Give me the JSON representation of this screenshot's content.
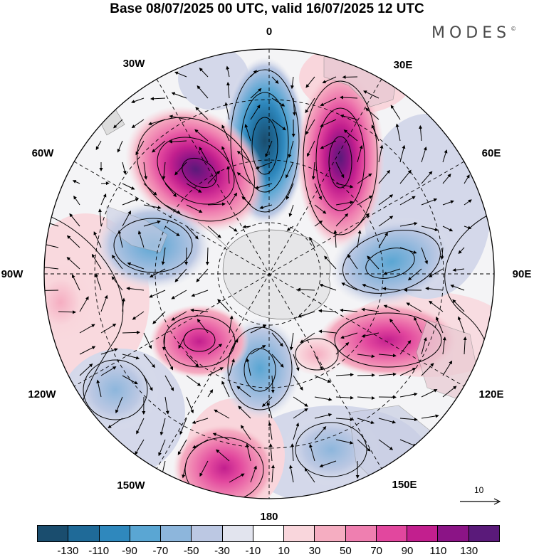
{
  "title": "Base 08/07/2025 00 UTC, valid 16/07/2025 12 UTC",
  "brand": {
    "text": "MODES",
    "mark": "©"
  },
  "longitude_labels": {
    "l0": "0",
    "l30e": "30E",
    "l60e": "60E",
    "l90e": "90E",
    "l120e": "120E",
    "l150e": "150E",
    "l180": "180",
    "l150w": "150W",
    "l120w": "120W",
    "l90w": "90W",
    "l60w": "60W",
    "l30w": "30W"
  },
  "reference_vector": {
    "label": "10"
  },
  "colorbar": {
    "colors": [
      "#1a4d6e",
      "#1f6a98",
      "#2f88bd",
      "#5aa6d3",
      "#8db6dc",
      "#bcc8e3",
      "#e2e4ee",
      "#ffffff",
      "#f9d6dc",
      "#f5adc1",
      "#ef7fb0",
      "#e2479e",
      "#c21f8e",
      "#8b1486",
      "#5a1a7a"
    ],
    "ticks": [
      "-130",
      "-110",
      "-90",
      "-70",
      "-50",
      "-30",
      "-10",
      "10",
      "30",
      "50",
      "70",
      "90",
      "110",
      "130"
    ]
  },
  "anomaly_centers": [
    {
      "sign": "negative",
      "level": -130
    },
    {
      "sign": "positive",
      "level": 110
    },
    {
      "sign": "positive",
      "level": 110
    },
    {
      "sign": "negative",
      "level": -70
    },
    {
      "sign": "negative",
      "level": -90
    },
    {
      "sign": "positive",
      "level": 90
    },
    {
      "sign": "negative",
      "level": -70
    },
    {
      "sign": "positive",
      "level": 70
    },
    {
      "sign": "positive",
      "level": 70
    },
    {
      "sign": "negative",
      "level": -50
    },
    {
      "sign": "negative",
      "level": -50
    },
    {
      "sign": "positive",
      "level": 50
    }
  ]
}
